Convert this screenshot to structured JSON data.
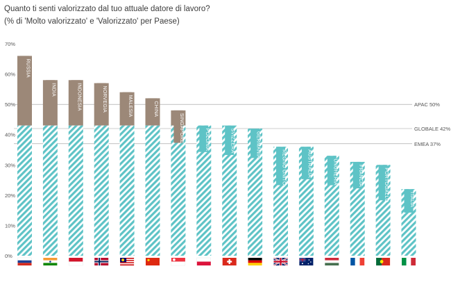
{
  "chart_data": {
    "type": "bar",
    "title": "Quanto ti senti valorizzato dal tuo attuale datore di lavoro?",
    "subtitle": "(% di 'Molto valorizzato' e 'Valorizzato' per Paese)",
    "categories": [
      "RUSSIA",
      "INDIA",
      "INDONESIA",
      "NORVEGIA",
      "MALESIA",
      "CHINA",
      "SINGAPORE",
      "POLONIA",
      "SVIZZERA",
      "GERMANIA",
      "REGNO UNITO",
      "AUSTRALIA",
      "UNGHERIA",
      "FRANCIA",
      "PORTOGALLO",
      "ITALIA"
    ],
    "values": [
      66,
      58,
      58,
      57,
      54,
      52,
      48,
      43,
      43,
      42,
      36,
      36,
      33,
      31,
      30,
      22
    ],
    "baseline": 43,
    "ylim": [
      0,
      70
    ],
    "yticks": [
      "0%",
      "10%",
      "20%",
      "30%",
      "40%",
      "50%",
      "60%",
      "70%"
    ],
    "reference_lines": [
      {
        "label": "APAC 50%",
        "value": 50
      },
      {
        "label": "GLOBALE 42%",
        "value": 42
      },
      {
        "label": "EMEA 37%",
        "value": 37
      }
    ],
    "colors": {
      "above": "#9c8878",
      "hatch": "#5ec3c6",
      "ref_line": "#999999"
    },
    "grid": false,
    "flags": [
      "russia-flag-icon",
      "india-flag-icon",
      "indonesia-flag-icon",
      "norway-flag-icon",
      "malaysia-flag-icon",
      "china-flag-icon",
      "singapore-flag-icon",
      "poland-flag-icon",
      "switzerland-flag-icon",
      "germany-flag-icon",
      "uk-flag-icon",
      "australia-flag-icon",
      "hungary-flag-icon",
      "france-flag-icon",
      "portugal-flag-icon",
      "italy-flag-icon"
    ]
  }
}
